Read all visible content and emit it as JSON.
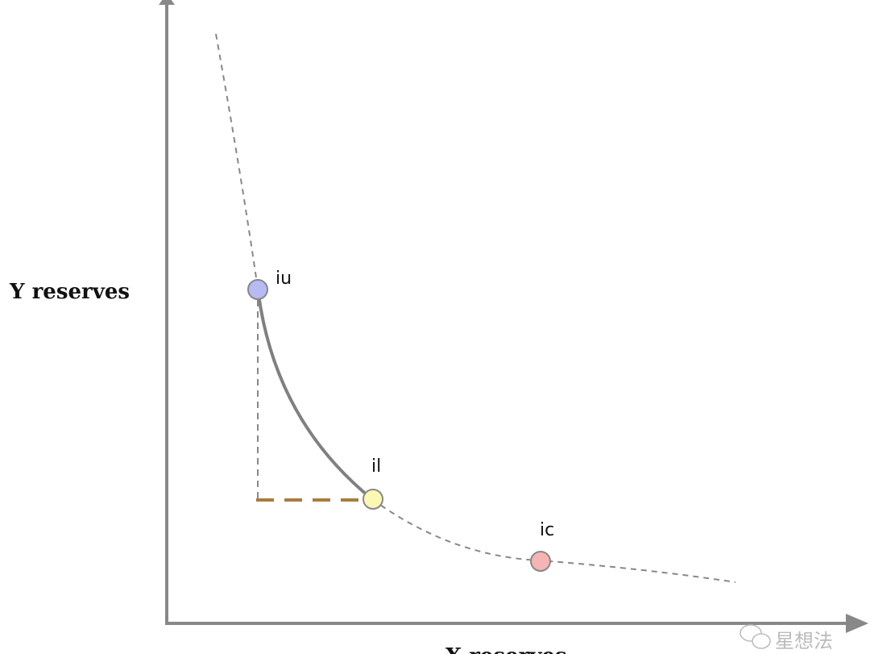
{
  "diagram": {
    "y_axis_label": "Y reserves",
    "x_axis_label": "X reserves",
    "points": [
      {
        "id": "iu",
        "label": "iu",
        "color": "#b8baf4"
      },
      {
        "id": "il",
        "label": "il",
        "color": "#fbf8b4"
      },
      {
        "id": "ic",
        "label": "ic",
        "color": "#f6b4b4"
      }
    ],
    "colors": {
      "axis": "#888888",
      "curve": "#808080",
      "highlight_dash": "#a87c3e"
    }
  },
  "watermark": {
    "text": "星想法",
    "icon": "wechat-icon"
  }
}
